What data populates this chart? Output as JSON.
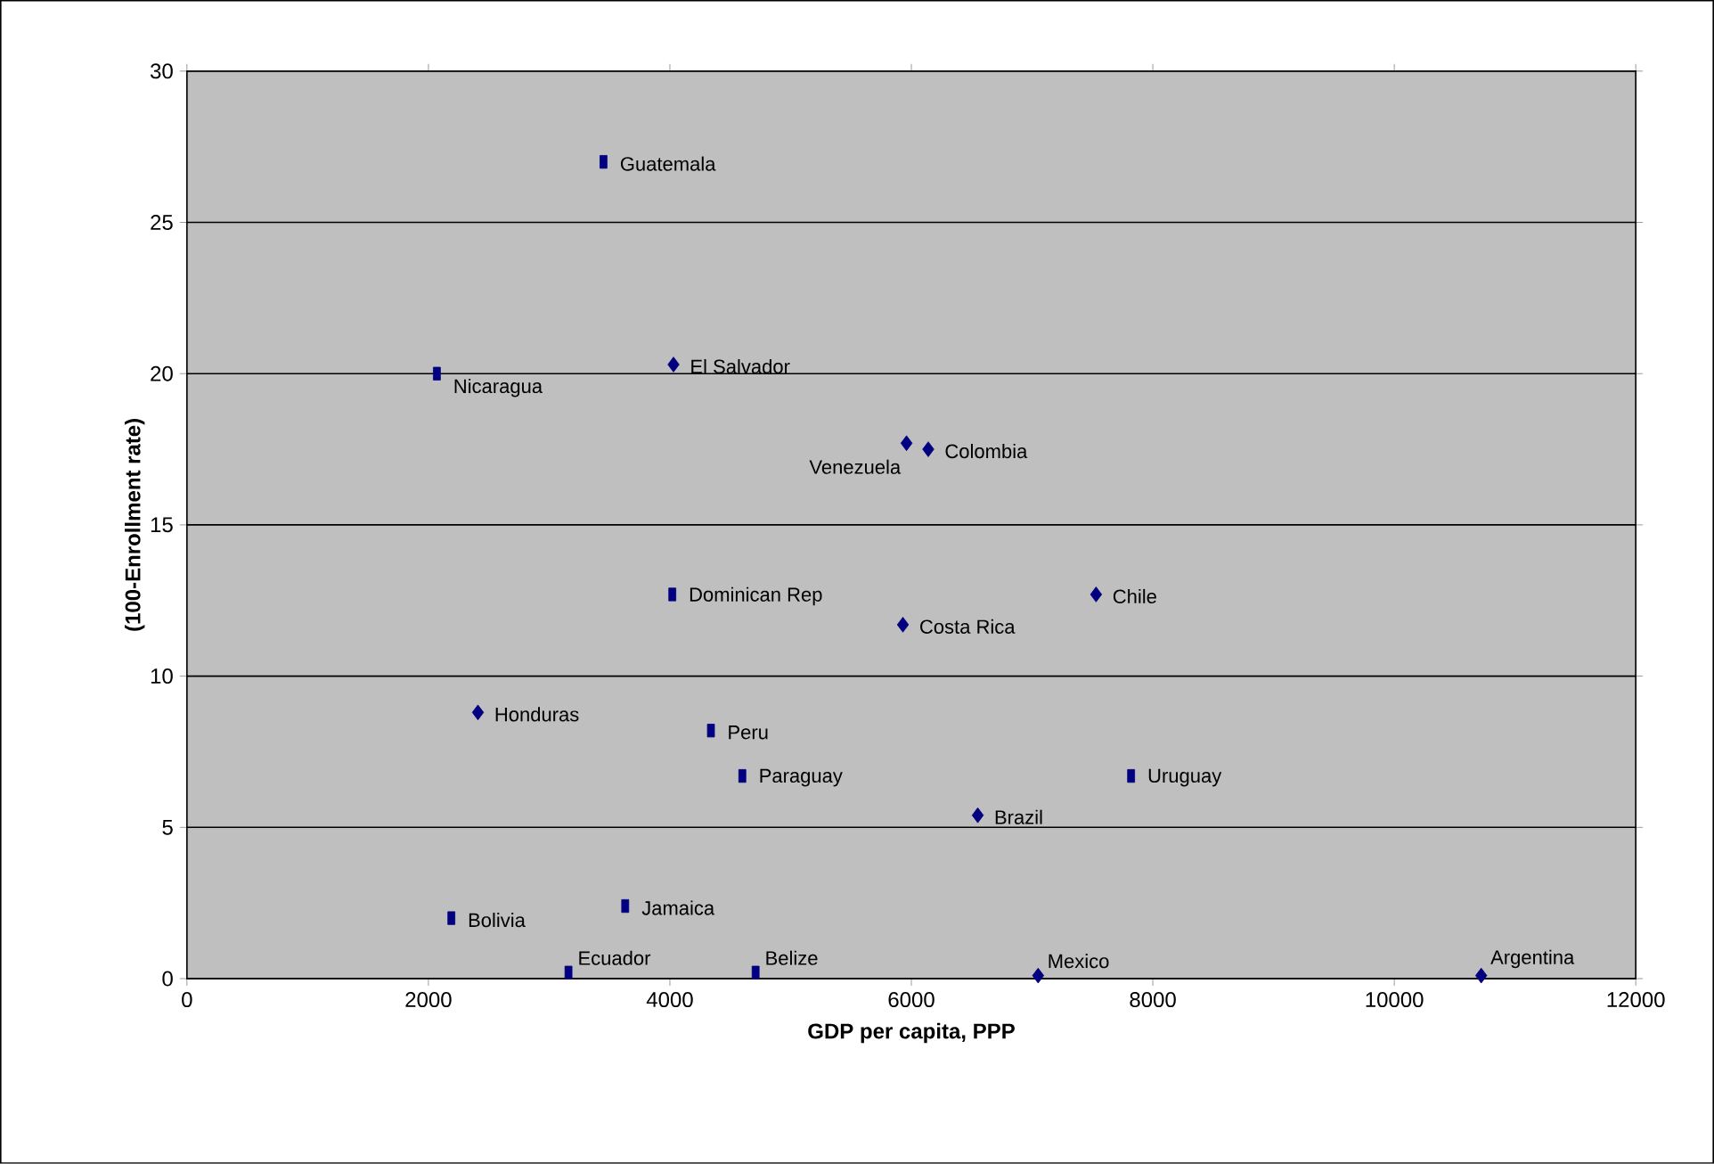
{
  "chart_data": {
    "type": "scatter",
    "xlabel": "GDP per capita, PPP",
    "ylabel": "(100-Enrollment rate)",
    "xlim": [
      0,
      12000
    ],
    "xticks": [
      0,
      2000,
      4000,
      6000,
      8000,
      10000,
      12000
    ],
    "ylim": [
      0,
      30
    ],
    "yticks": [
      0,
      5,
      10,
      15,
      20,
      25,
      30
    ],
    "grid": "y",
    "series": [
      {
        "color": "#000080",
        "marker": "diamond",
        "x": [
          4030,
          5960,
          6140,
          7530,
          5930,
          2410,
          6550,
          7050,
          10720
        ],
        "values": [
          20.3,
          17.7,
          17.5,
          12.7,
          11.7,
          8.8,
          5.4,
          0.1,
          0.1
        ]
      },
      {
        "color": "#000080",
        "marker": "square",
        "x": [
          3450,
          2070,
          4020,
          4340,
          4600,
          7820,
          2190,
          3630,
          3160,
          4710
        ],
        "values": [
          27.0,
          20.0,
          12.7,
          8.2,
          6.7,
          6.7,
          2.0,
          2.4,
          0.2,
          0.2
        ]
      }
    ],
    "annotations": [
      {
        "text": "Guatemala",
        "x": 3450,
        "y": 27.0
      },
      {
        "text": "Nicaragua",
        "x": 2070,
        "y": 20.0
      },
      {
        "text": "El Salvador",
        "x": 4030,
        "y": 20.3
      },
      {
        "text": "Venezuela",
        "x": 5960,
        "y": 17.7
      },
      {
        "text": "Colombia",
        "x": 6140,
        "y": 17.5
      },
      {
        "text": "Dominican Rep",
        "x": 4020,
        "y": 12.7
      },
      {
        "text": "Chile",
        "x": 7530,
        "y": 12.7
      },
      {
        "text": "Costa Rica",
        "x": 5930,
        "y": 11.7
      },
      {
        "text": "Honduras",
        "x": 2410,
        "y": 8.8
      },
      {
        "text": "Peru",
        "x": 4340,
        "y": 8.2
      },
      {
        "text": "Paraguay",
        "x": 4600,
        "y": 6.7
      },
      {
        "text": "Uruguay",
        "x": 7820,
        "y": 6.7
      },
      {
        "text": "Brazil",
        "x": 6550,
        "y": 5.4
      },
      {
        "text": "Bolivia",
        "x": 2190,
        "y": 2.0
      },
      {
        "text": "Jamaica",
        "x": 3630,
        "y": 2.4
      },
      {
        "text": "Ecuador",
        "x": 3160,
        "y": 0.2
      },
      {
        "text": "Belize",
        "x": 4710,
        "y": 0.2
      },
      {
        "text": "Mexico",
        "x": 7050,
        "y": 0.1
      },
      {
        "text": "Argentina",
        "x": 10720,
        "y": 0.1
      }
    ]
  }
}
